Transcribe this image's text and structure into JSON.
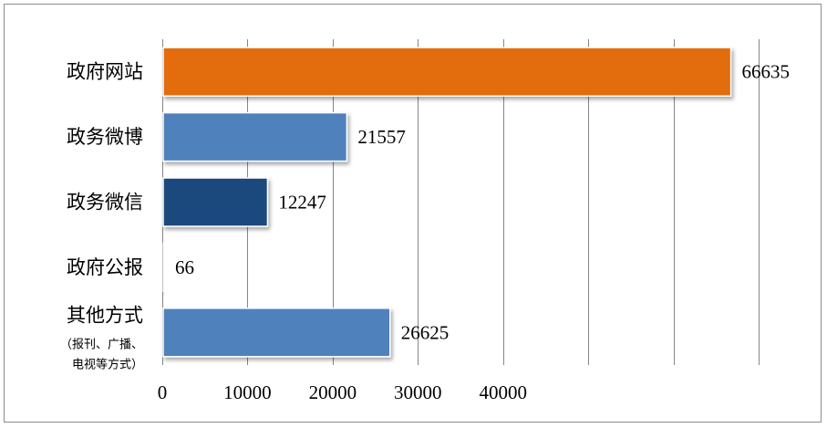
{
  "chart_data": {
    "type": "bar",
    "orientation": "horizontal",
    "categories": [
      {
        "label": "政府网站",
        "sublabel": []
      },
      {
        "label": "政务微博",
        "sublabel": []
      },
      {
        "label": "政务微信",
        "sublabel": []
      },
      {
        "label": "政府公报",
        "sublabel": []
      },
      {
        "label": "其他方式",
        "sublabel": [
          "（报刊、广播、",
          "电视等方式）"
        ]
      }
    ],
    "values": [
      66635,
      21557,
      12247,
      66,
      26625
    ],
    "data_labels": [
      "66635",
      "21557",
      "12247",
      "66",
      "26625"
    ],
    "bar_colors": [
      "#E36C0A",
      "#4F81BD",
      "#1F497D",
      "#4F81BD",
      "#4F81BD"
    ],
    "x_ticks": [
      {
        "value": 0,
        "label": "0"
      },
      {
        "value": 10000,
        "label": "10000"
      },
      {
        "value": 20000,
        "label": "20000"
      },
      {
        "value": 30000,
        "label": "30000"
      },
      {
        "value": 40000,
        "label": "40000"
      }
    ],
    "xlim": [
      0,
      70000
    ],
    "grid": true,
    "legend": "none",
    "title": "",
    "xlabel": "",
    "ylabel": ""
  }
}
